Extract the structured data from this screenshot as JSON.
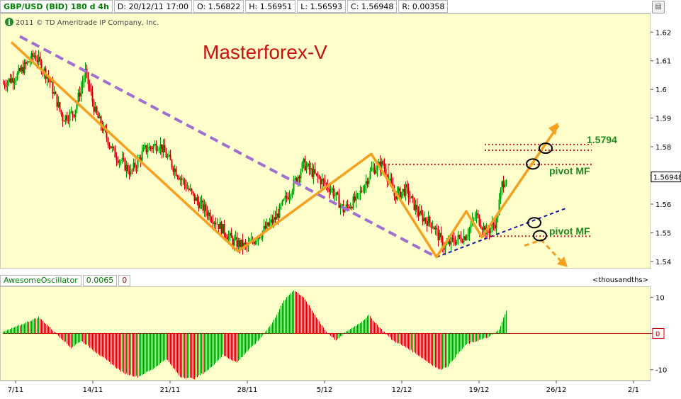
{
  "header": {
    "symbol": "GBP/USD (BID) 180 d 4h",
    "date": "D: 20/12/11 17:00",
    "open": "O: 1.56822",
    "high": "H: 1.56951",
    "low": "L: 1.56593",
    "close": "C: 1.56948",
    "range": "R: 0.00358"
  },
  "copyright": "2011 © TD Ameritrade IP Company, Inc.",
  "annotations": {
    "title": "Masterforex-V",
    "level_label": "1.5794",
    "pivot_upper": "pivot MF",
    "pivot_lower": "pivot MF"
  },
  "oscillator": {
    "name": "AwesomeOscillator",
    "value": "0.0065",
    "value2": "0",
    "units": "<thousandths>"
  },
  "colors": {
    "background": "#ffffcc",
    "candle_up": "#009900",
    "candle_down": "#cc0000",
    "zigzag": "#f5a020",
    "channel_dashed": "#a070d0",
    "support_dashed": "#1a1a9c",
    "pivot_dotted": "#cc2222",
    "title_color": "#cc1111",
    "label_green": "#228822"
  },
  "chart_data": [
    {
      "type": "candlestick",
      "title": "GBP/USD (BID) 180 d 4h",
      "x_tick_labels": [
        "7/11",
        "14/11",
        "21/11",
        "28/11",
        "5/12",
        "12/12",
        "19/12",
        "26/12",
        "2/1"
      ],
      "y_tick_labels": [
        "1.62",
        "1.61",
        "1.6",
        "1.59",
        "1.58",
        "1.57",
        "1.56",
        "1.55",
        "1.54"
      ],
      "ylim": [
        1.5375,
        1.6265
      ],
      "last_price": "1.56948",
      "price_path": [
        [
          0,
          1.602
        ],
        [
          10,
          1.605
        ],
        [
          22,
          1.612
        ],
        [
          32,
          1.604
        ],
        [
          42,
          1.59
        ],
        [
          50,
          1.592
        ],
        [
          58,
          1.606
        ],
        [
          65,
          1.592
        ],
        [
          78,
          1.578
        ],
        [
          90,
          1.571
        ],
        [
          100,
          1.579
        ],
        [
          110,
          1.581
        ],
        [
          120,
          1.573
        ],
        [
          135,
          1.562
        ],
        [
          150,
          1.554
        ],
        [
          162,
          1.547
        ],
        [
          172,
          1.545
        ],
        [
          180,
          1.549
        ],
        [
          192,
          1.555
        ],
        [
          205,
          1.567
        ],
        [
          212,
          1.574
        ],
        [
          220,
          1.57
        ],
        [
          232,
          1.565
        ],
        [
          240,
          1.558
        ],
        [
          250,
          1.562
        ],
        [
          260,
          1.572
        ],
        [
          268,
          1.574
        ],
        [
          276,
          1.563
        ],
        [
          284,
          1.565
        ],
        [
          294,
          1.556
        ],
        [
          303,
          1.553
        ],
        [
          311,
          1.545
        ],
        [
          317,
          1.547
        ],
        [
          326,
          1.549
        ],
        [
          334,
          1.556
        ],
        [
          341,
          1.55
        ],
        [
          348,
          1.554
        ],
        [
          352,
          1.567
        ],
        [
          355,
          1.5695
        ]
      ],
      "annotation_lines": {
        "zigzag": [
          [
            6,
            1.6165
          ],
          [
            166,
            1.5435
          ],
          [
            260,
            1.5775
          ],
          [
            306,
            1.5415
          ],
          [
            327,
            1.5575
          ],
          [
            338,
            1.5485
          ],
          [
            392,
            1.5875
          ]
        ],
        "zigzag_projection": [
          [
            368,
            1.5455
          ],
          [
            380,
            1.5475
          ],
          [
            395,
            1.5395
          ]
        ],
        "channel_dashed": [
          [
            12,
            1.6185
          ],
          [
            306,
            1.5415
          ]
        ],
        "support_dashed": [
          [
            306,
            1.5415
          ],
          [
            397,
            1.5585
          ]
        ],
        "pivot_levels": [
          1.5808,
          1.5788,
          1.5738,
          1.5488
        ],
        "circled_points": [
          [
            383,
            1.5795
          ],
          [
            374,
            1.574
          ],
          [
            375,
            1.5535
          ],
          [
            379,
            1.549
          ]
        ]
      }
    },
    {
      "type": "bar",
      "title": "AwesomeOscillator",
      "y_tick_labels": [
        "10",
        "0",
        "-10"
      ],
      "ylim": [
        -13,
        13
      ],
      "current_value": 0.0065,
      "oscillator_path": [
        [
          0,
          0.4
        ],
        [
          10,
          2
        ],
        [
          25,
          4.5
        ],
        [
          32,
          2
        ],
        [
          40,
          -1
        ],
        [
          48,
          -4
        ],
        [
          55,
          -2
        ],
        [
          65,
          -5
        ],
        [
          75,
          -8
        ],
        [
          85,
          -11
        ],
        [
          95,
          -12
        ],
        [
          105,
          -10
        ],
        [
          115,
          -7
        ],
        [
          125,
          -12
        ],
        [
          135,
          -12.5
        ],
        [
          145,
          -10
        ],
        [
          155,
          -6
        ],
        [
          165,
          -8
        ],
        [
          172,
          -5
        ],
        [
          180,
          -2
        ],
        [
          190,
          3
        ],
        [
          198,
          9
        ],
        [
          205,
          12
        ],
        [
          212,
          10
        ],
        [
          220,
          5
        ],
        [
          228,
          0.5
        ],
        [
          235,
          -2
        ],
        [
          242,
          0.5
        ],
        [
          252,
          3
        ],
        [
          258,
          5
        ],
        [
          266,
          1.5
        ],
        [
          275,
          -2
        ],
        [
          285,
          -4
        ],
        [
          293,
          -6
        ],
        [
          300,
          -8
        ],
        [
          308,
          -10
        ],
        [
          314,
          -9
        ],
        [
          320,
          -6
        ],
        [
          327,
          -3
        ],
        [
          335,
          -2
        ],
        [
          343,
          -1
        ],
        [
          350,
          1
        ],
        [
          355,
          6.5
        ]
      ]
    }
  ]
}
